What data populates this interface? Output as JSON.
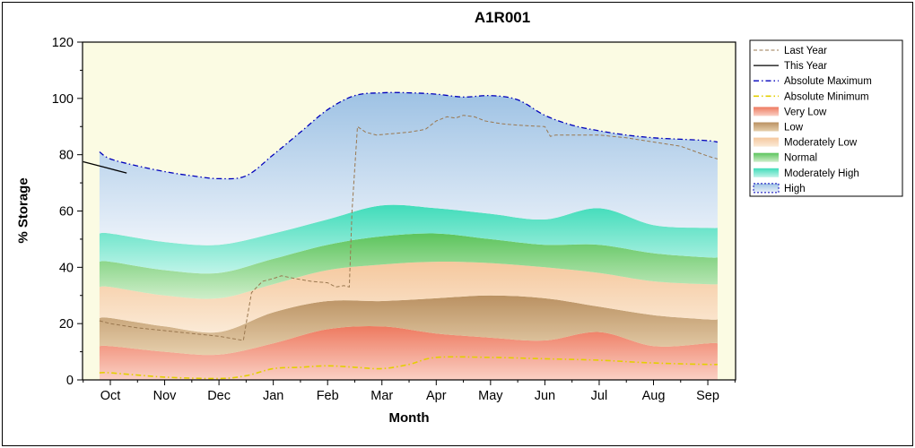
{
  "window": {
    "title": "A1R001"
  },
  "chart_data": {
    "type": "area",
    "title": "A1R001",
    "xlabel": "Month",
    "ylabel": "% Storage",
    "x_tick_labels": [
      "Oct",
      "Nov",
      "Dec",
      "Jan",
      "Feb",
      "Mar",
      "Apr",
      "May",
      "Jun",
      "Jul",
      "Aug",
      "Sep"
    ],
    "y_ticks": [
      0,
      20,
      40,
      60,
      80,
      100,
      120
    ],
    "ylim": [
      0,
      120
    ],
    "plot_bg": "#FBFBE3",
    "band_x": [
      -0.2,
      0,
      1,
      2,
      3,
      4,
      5,
      6,
      7,
      8,
      9,
      10,
      11,
      11.18
    ],
    "bands": [
      {
        "name": "Very Low",
        "color_top": "#EE7A60",
        "color_bottom": "#FAD0C4",
        "v": [
          12,
          12,
          10,
          9,
          13,
          18,
          19,
          16.5,
          15,
          14,
          17,
          12,
          13,
          13
        ]
      },
      {
        "name": "Low",
        "color_top": "#BA9162",
        "color_bottom": "#E6CFAC",
        "v": [
          22,
          22,
          19,
          17,
          24,
          28,
          28,
          29,
          30,
          29,
          26,
          23,
          21.5,
          21.5
        ]
      },
      {
        "name": "Moderately Low",
        "color_top": "#F5C89E",
        "color_bottom": "#FBEAD6",
        "v": [
          33,
          33,
          30,
          29,
          34,
          39,
          41,
          42,
          41.5,
          40,
          38,
          35,
          34,
          34
        ]
      },
      {
        "name": "Normal",
        "color_top": "#5CC45C",
        "color_bottom": "#CEEECA",
        "v": [
          42,
          42,
          39,
          38,
          43,
          48,
          51,
          52,
          50,
          48,
          48,
          45,
          43.5,
          43.5
        ]
      },
      {
        "name": "Moderately High",
        "color_top": "#40DCBA",
        "color_bottom": "#BFF4E8",
        "v": [
          52,
          52,
          49,
          48,
          52,
          57,
          62,
          61,
          59,
          57,
          61,
          55,
          54,
          54
        ]
      },
      {
        "name": "High",
        "color_top": "#9EC2E4",
        "color_bottom": "#EDF3FA",
        "x": [
          -0.2,
          0,
          0.5,
          1,
          1.5,
          2,
          2.5,
          3,
          3.5,
          4,
          4.5,
          5,
          5.5,
          6,
          6.5,
          7,
          7.5,
          8,
          8.5,
          9,
          9.5,
          10,
          10.5,
          11,
          11.18
        ],
        "v": [
          81,
          78.5,
          76,
          74,
          72.5,
          71.5,
          72.5,
          80,
          88,
          96,
          101,
          102,
          102,
          101.5,
          100.5,
          101,
          99.5,
          94,
          90.5,
          88.5,
          87,
          86,
          85.5,
          85,
          84.5
        ]
      }
    ],
    "lines": [
      {
        "name": "Last Year",
        "color": "#9A7850",
        "width": 1,
        "dash": "4 2.5",
        "smooth": false,
        "x": [
          -0.2,
          0,
          0.5,
          1,
          1.5,
          2,
          2.3,
          2.45,
          2.5,
          2.6,
          2.8,
          3,
          3.15,
          3.4,
          3.7,
          4,
          4.15,
          4.3,
          4.4,
          4.45,
          4.55,
          4.7,
          4.9,
          5.2,
          5.5,
          5.8,
          6,
          6.2,
          6.35,
          6.5,
          6.7,
          6.9,
          7.2,
          7.5,
          8,
          8.1,
          8.2,
          8.5,
          9,
          9.5,
          10,
          10.5,
          11,
          11.18
        ],
        "v": [
          21,
          20,
          18.5,
          17.5,
          16.5,
          15.5,
          14.5,
          14,
          20,
          31,
          35,
          36,
          37,
          36,
          35,
          34.5,
          33,
          33.5,
          33,
          60,
          90,
          88,
          87,
          87.5,
          88,
          89,
          92,
          93.5,
          93,
          94,
          93.5,
          92,
          91,
          90.5,
          90,
          86.5,
          87,
          87,
          87,
          86,
          84.5,
          83,
          79.5,
          78.5
        ]
      },
      {
        "name": "This Year",
        "color": "#000000",
        "width": 1.3,
        "dash": "",
        "smooth": false,
        "x": [
          -0.5,
          -0.1,
          0.3
        ],
        "v": [
          77.5,
          75.5,
          73.5
        ]
      },
      {
        "name": "Absolute Maximum",
        "color": "#0000BB",
        "width": 1.3,
        "dash": "6 3 1.5 3",
        "smooth": true,
        "x": [
          -0.2,
          0,
          0.5,
          1,
          1.5,
          2,
          2.5,
          3,
          3.5,
          4,
          4.5,
          5,
          5.5,
          6,
          6.5,
          7,
          7.5,
          8,
          8.5,
          9,
          9.5,
          10,
          10.5,
          11,
          11.18
        ],
        "v": [
          81,
          78.5,
          76,
          74,
          72.5,
          71.5,
          72.5,
          80,
          88,
          96,
          101,
          102,
          102,
          101.5,
          100.5,
          101,
          99.5,
          94,
          90.5,
          88.5,
          87,
          86,
          85.5,
          85,
          84.5
        ]
      },
      {
        "name": "Absolute Minimum",
        "color": "#E3CF00",
        "width": 1.6,
        "dash": "6 3 1.5 3",
        "smooth": true,
        "x": [
          -0.2,
          0,
          1,
          2,
          2.5,
          3,
          3.5,
          4,
          4.5,
          5,
          5.5,
          6,
          7,
          8,
          9,
          10,
          11,
          11.18
        ],
        "v": [
          2.5,
          2.5,
          1,
          0.5,
          1.5,
          4,
          4.5,
          5,
          4.5,
          4,
          5.5,
          8,
          8,
          7.5,
          7,
          6,
          5.5,
          5.5
        ]
      }
    ],
    "legend": {
      "items": [
        {
          "label": "Last Year",
          "swatch": "line",
          "ref": "Last Year"
        },
        {
          "label": "This Year",
          "swatch": "line",
          "ref": "This Year"
        },
        {
          "label": "Absolute Maximum",
          "swatch": "line",
          "ref": "Absolute Maximum"
        },
        {
          "label": "Absolute Minimum",
          "swatch": "line",
          "ref": "Absolute Minimum"
        },
        {
          "label": "Very Low",
          "swatch": "box",
          "ref": "Very Low"
        },
        {
          "label": "Low",
          "swatch": "box",
          "ref": "Low"
        },
        {
          "label": "Moderately Low",
          "swatch": "box",
          "ref": "Moderately Low"
        },
        {
          "label": "Normal",
          "swatch": "box",
          "ref": "Normal"
        },
        {
          "label": "Moderately High",
          "swatch": "box",
          "ref": "Moderately High"
        },
        {
          "label": "High",
          "swatch": "box",
          "ref": "High",
          "box_outline": {
            "color": "#0000BB",
            "dash": "2 2"
          }
        }
      ]
    }
  }
}
